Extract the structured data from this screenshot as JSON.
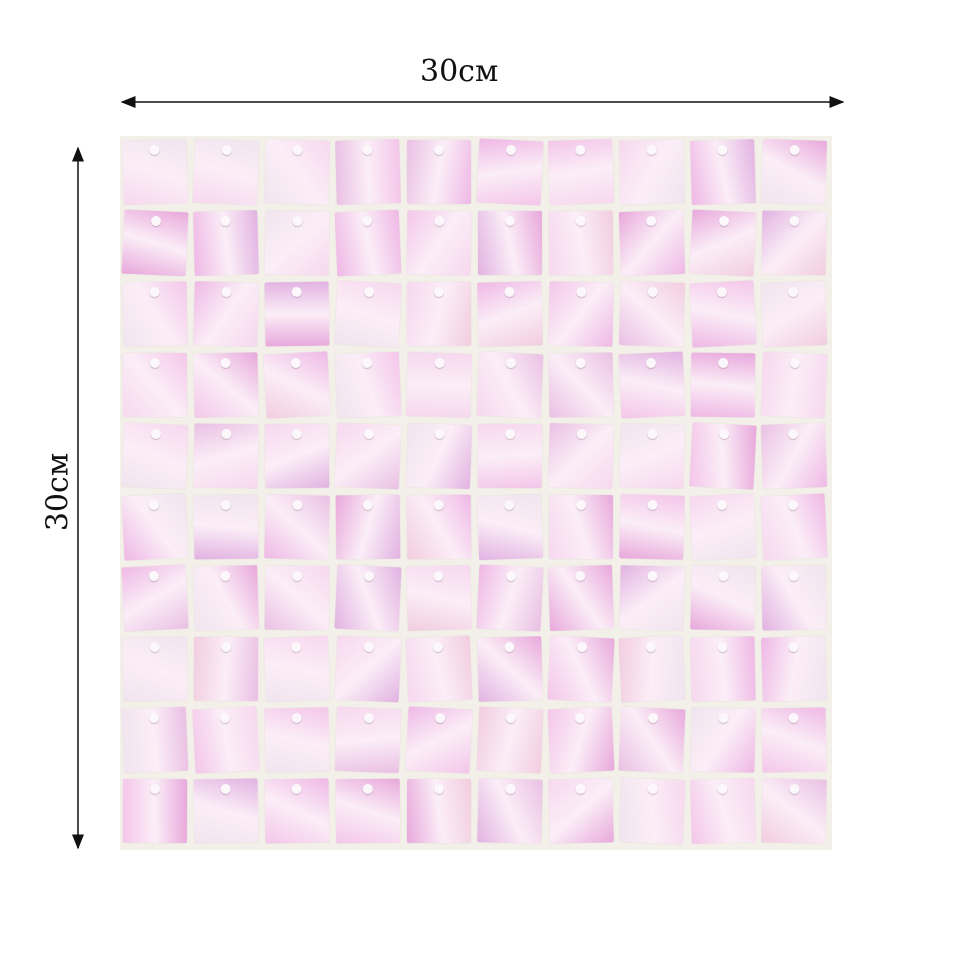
{
  "dimensions": {
    "width_label": "30см",
    "height_label": "30см"
  },
  "panel": {
    "rows": 10,
    "columns": 10,
    "palette": [
      "#f4c6ea",
      "#efb8e6",
      "#e8a8dc",
      "#f7d8ef",
      "#f0e4ee",
      "#eac0e4",
      "#f2cde0",
      "#e2b2e2"
    ]
  }
}
